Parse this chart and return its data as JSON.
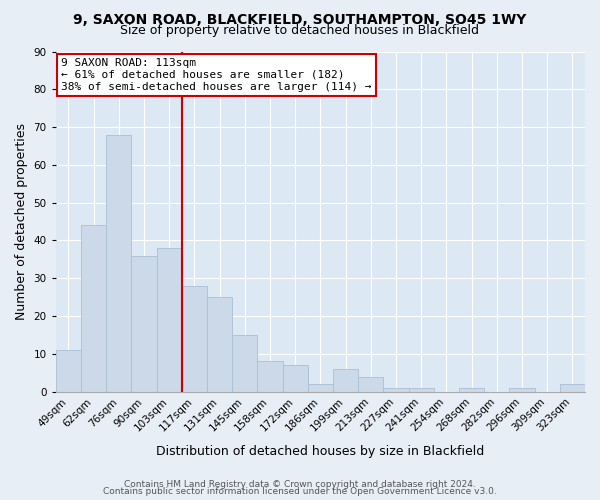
{
  "title": "9, SAXON ROAD, BLACKFIELD, SOUTHAMPTON, SO45 1WY",
  "subtitle": "Size of property relative to detached houses in Blackfield",
  "xlabel": "Distribution of detached houses by size in Blackfield",
  "ylabel": "Number of detached properties",
  "footer_line1": "Contains HM Land Registry data © Crown copyright and database right 2024.",
  "footer_line2": "Contains public sector information licensed under the Open Government Licence v3.0.",
  "bar_labels": [
    "49sqm",
    "62sqm",
    "76sqm",
    "90sqm",
    "103sqm",
    "117sqm",
    "131sqm",
    "145sqm",
    "158sqm",
    "172sqm",
    "186sqm",
    "199sqm",
    "213sqm",
    "227sqm",
    "241sqm",
    "254sqm",
    "268sqm",
    "282sqm",
    "296sqm",
    "309sqm",
    "323sqm"
  ],
  "bar_values": [
    11,
    44,
    68,
    36,
    38,
    28,
    25,
    15,
    8,
    7,
    2,
    6,
    4,
    1,
    1,
    0,
    1,
    0,
    1,
    0,
    2
  ],
  "bar_color": "#ccd9e8",
  "bar_edge_color": "#a8bfd4",
  "vline_color": "#cc0000",
  "annotation_text": "9 SAXON ROAD: 113sqm\n← 61% of detached houses are smaller (182)\n38% of semi-detached houses are larger (114) →",
  "annotation_box_color": "white",
  "annotation_box_edge": "#cc0000",
  "ylim": [
    0,
    90
  ],
  "yticks": [
    0,
    10,
    20,
    30,
    40,
    50,
    60,
    70,
    80,
    90
  ],
  "bg_color": "#e8eef5",
  "plot_bg_color": "#dce8f4",
  "grid_color": "white",
  "title_fontsize": 10,
  "subtitle_fontsize": 9,
  "axis_label_fontsize": 9,
  "tick_fontsize": 7.5,
  "annotation_fontsize": 8,
  "footer_fontsize": 6.5,
  "vline_index": 5
}
